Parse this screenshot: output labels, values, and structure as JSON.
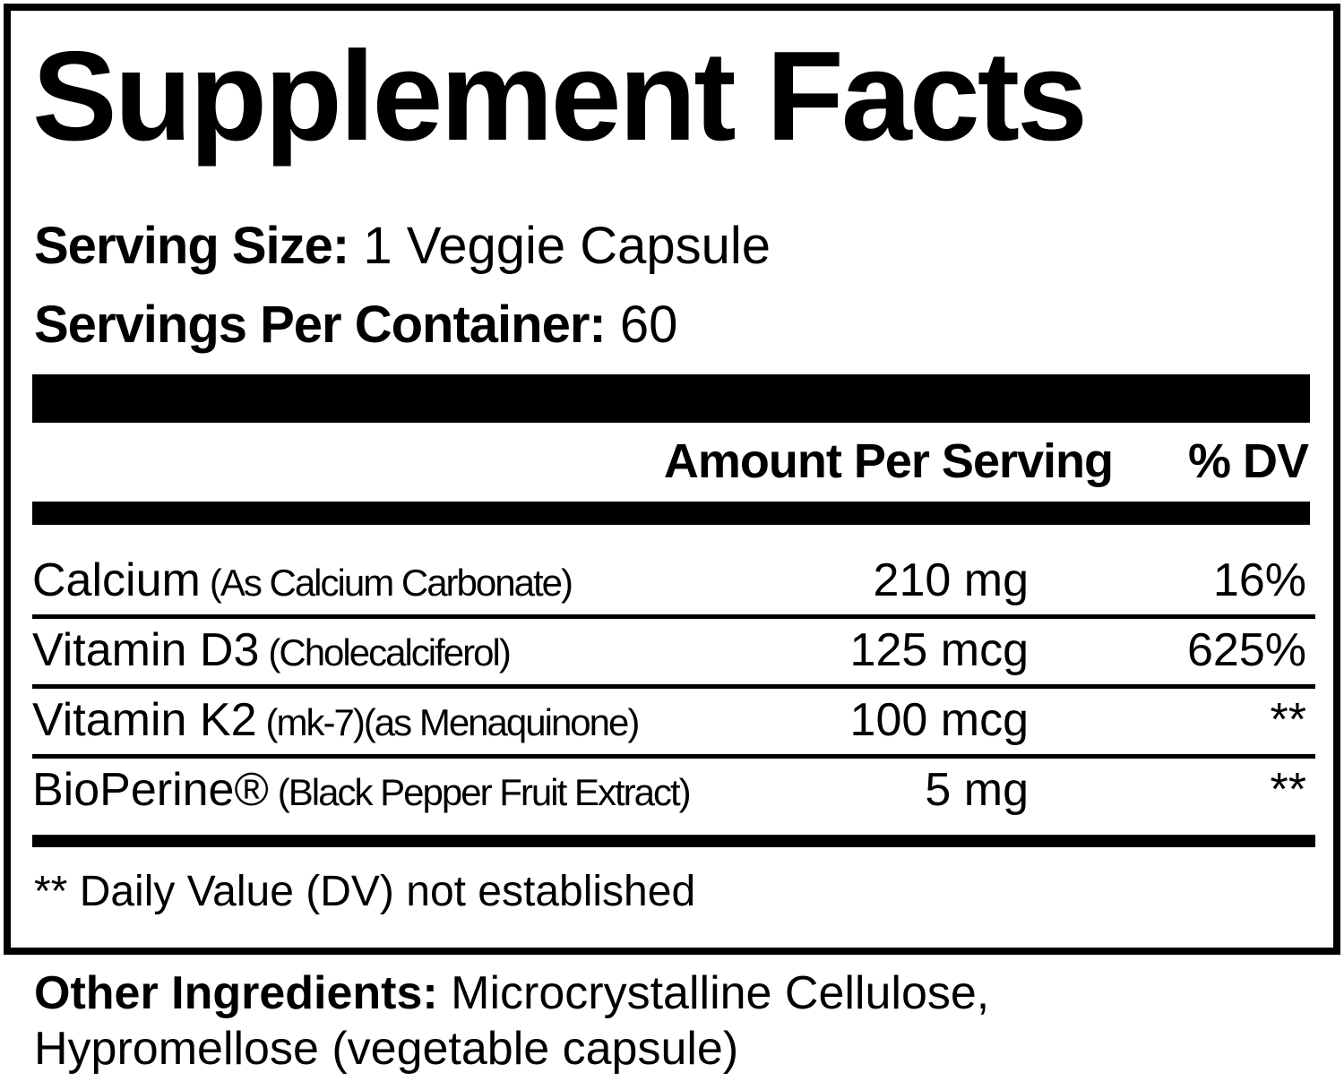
{
  "title": "Supplement Facts",
  "serving_size": {
    "label": "Serving Size:",
    "value": "1 Veggie Capsule"
  },
  "servings_per_container": {
    "label": "Servings Per Container:",
    "value": "60"
  },
  "columns": {
    "amount": "Amount Per Serving",
    "dv": "% DV"
  },
  "rows": [
    {
      "name": "Calcium",
      "detail": "(As Calcium Carbonate)",
      "amount": "210 mg",
      "dv": "16%"
    },
    {
      "name": "Vitamin D3",
      "detail": "(Cholecalciferol)",
      "amount": "125 mcg",
      "dv": "625%"
    },
    {
      "name": "Vitamin K2",
      "detail": "(mk-7)(as Menaquinone)",
      "amount": "100 mcg",
      "dv": "**"
    },
    {
      "name": "BioPerine®",
      "detail": "(Black Pepper Fruit Extract)",
      "amount": "5 mg",
      "dv": "**"
    }
  ],
  "footnote": "** Daily Value (DV) not established",
  "other_ingredients": {
    "label": "Other Ingredients:",
    "value": "Microcrystalline Cellulose, Hypromellose (vegetable capsule)"
  }
}
